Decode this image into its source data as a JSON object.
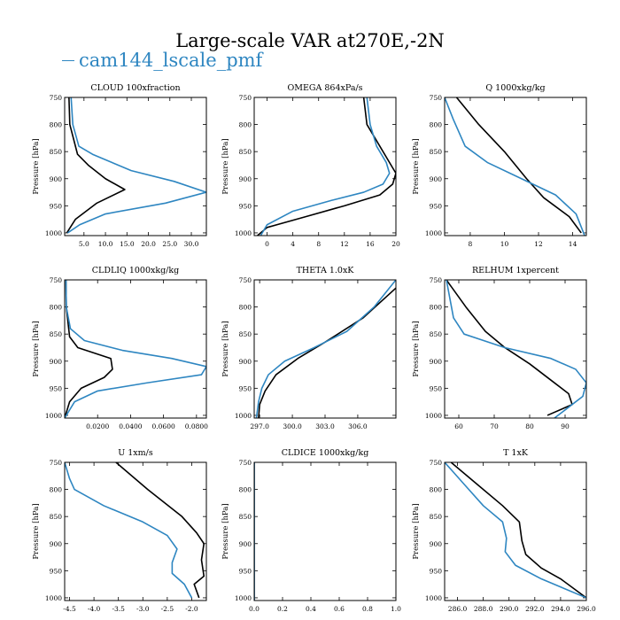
{
  "title": "Large-scale VAR at270E,-2N",
  "legend": {
    "label": "cam144_lscale_pmf",
    "color": "#2e86c1"
  },
  "colors": {
    "case": "#2e86c1",
    "reference": "#000000"
  },
  "chart_data": [
    {
      "type": "line",
      "title": "CLOUD 100xfraction",
      "ylabel": "Pressure [hPa]",
      "xlim": [
        0.5,
        33.5
      ],
      "ylim": [
        1005,
        750
      ],
      "grid": false,
      "xticks": [
        5.0,
        10.0,
        15.0,
        20.0,
        25.0,
        30.0
      ],
      "xtick_labels": [
        "5.0",
        "10.0",
        "15.0",
        "20.0",
        "25.0",
        "30.0"
      ],
      "yticks": [
        750,
        800,
        850,
        900,
        950,
        1000
      ],
      "ytick_labels": [
        "750",
        "800",
        "850",
        "900",
        "950",
        "1000"
      ],
      "series": [
        {
          "name": "cam144_lscale_pmf",
          "color": "#2e86c1",
          "points": [
            [
              2.0,
              750
            ],
            [
              2.4,
              800
            ],
            [
              3.8,
              840
            ],
            [
              7,
              855
            ],
            [
              16,
              885
            ],
            [
              26,
              905
            ],
            [
              33.5,
              925
            ],
            [
              24,
              945
            ],
            [
              10,
              965
            ],
            [
              4,
              985
            ],
            [
              1.2,
              1000
            ]
          ]
        },
        {
          "color": "#000000",
          "points": [
            [
              1.5,
              750
            ],
            [
              1.7,
              800
            ],
            [
              3.5,
              855
            ],
            [
              6,
              875
            ],
            [
              10,
              900
            ],
            [
              14.5,
              920
            ],
            [
              8,
              945
            ],
            [
              3,
              975
            ],
            [
              1,
              1000
            ]
          ]
        }
      ]
    },
    {
      "type": "line",
      "title": "OMEGA 864xPa/s",
      "ylabel": "Pressure [hPa]",
      "xlim": [
        -2,
        20
      ],
      "ylim": [
        1005,
        750
      ],
      "grid": false,
      "xticks": [
        0,
        4,
        8,
        12,
        16,
        20
      ],
      "xtick_labels": [
        "0",
        "4",
        "8",
        "12",
        "16",
        "20"
      ],
      "yticks": [
        750,
        800,
        850,
        900,
        950,
        1000
      ],
      "ytick_labels": [
        "750",
        "800",
        "850",
        "900",
        "950",
        "1000"
      ],
      "series": [
        {
          "name": "cam144_lscale_pmf",
          "color": "#2e86c1",
          "points": [
            [
              15.5,
              750
            ],
            [
              16,
              800
            ],
            [
              17,
              840
            ],
            [
              18.5,
              870
            ],
            [
              19,
              890
            ],
            [
              18,
              910
            ],
            [
              15,
              925
            ],
            [
              10,
              940
            ],
            [
              4,
              960
            ],
            [
              0,
              985
            ],
            [
              -1,
              1005
            ]
          ]
        },
        {
          "color": "#000000",
          "points": [
            [
              15,
              750
            ],
            [
              15.5,
              800
            ],
            [
              17.5,
              840
            ],
            [
              20,
              890
            ],
            [
              19.5,
              910
            ],
            [
              17.5,
              930
            ],
            [
              12,
              950
            ],
            [
              6,
              970
            ],
            [
              0,
              990
            ],
            [
              -1.5,
              1005
            ]
          ]
        }
      ]
    },
    {
      "type": "line",
      "title": "Q 1000xkg/kg",
      "ylabel": "Pressure [hPa]",
      "xlim": [
        6.5,
        14.8
      ],
      "ylim": [
        1005,
        750
      ],
      "grid": false,
      "xticks": [
        8,
        10,
        12,
        14
      ],
      "xtick_labels": [
        "8",
        "10",
        "12",
        "14"
      ],
      "yticks": [
        750,
        800,
        850,
        900,
        950,
        1000
      ],
      "ytick_labels": [
        "750",
        "800",
        "850",
        "900",
        "950",
        "1000"
      ],
      "series": [
        {
          "name": "cam144_lscale_pmf",
          "color": "#2e86c1",
          "points": [
            [
              6.5,
              750
            ],
            [
              7,
              790
            ],
            [
              7.7,
              840
            ],
            [
              9,
              870
            ],
            [
              11,
              900
            ],
            [
              13,
              930
            ],
            [
              14.2,
              965
            ],
            [
              14.7,
              1005
            ]
          ]
        },
        {
          "color": "#000000",
          "points": [
            [
              7.2,
              750
            ],
            [
              8.5,
              800
            ],
            [
              10,
              850
            ],
            [
              11.3,
              900
            ],
            [
              12.3,
              935
            ],
            [
              13.8,
              970
            ],
            [
              14.5,
              1000
            ]
          ]
        }
      ]
    },
    {
      "type": "line",
      "title": "CLDLIQ 1000xkg/kg",
      "ylabel": "Pressure [hPa]",
      "xlim": [
        0,
        0.086
      ],
      "ylim": [
        1005,
        750
      ],
      "grid": false,
      "xticks": [
        0.02,
        0.04,
        0.06,
        0.08
      ],
      "xtick_labels": [
        "0.0200",
        "0.0400",
        "0.0600",
        "0.0800"
      ],
      "yticks": [
        750,
        800,
        850,
        900,
        950,
        1000
      ],
      "ytick_labels": [
        "750",
        "800",
        "850",
        "900",
        "950",
        "1000"
      ],
      "series": [
        {
          "name": "cam144_lscale_pmf",
          "color": "#2e86c1",
          "points": [
            [
              0.0008,
              750
            ],
            [
              0.001,
              800
            ],
            [
              0.0035,
              840
            ],
            [
              0.012,
              862
            ],
            [
              0.035,
              880
            ],
            [
              0.065,
              895
            ],
            [
              0.086,
              910
            ],
            [
              0.083,
              925
            ],
            [
              0.05,
              940
            ],
            [
              0.02,
              955
            ],
            [
              0.006,
              975
            ],
            [
              0,
              1005
            ]
          ]
        },
        {
          "color": "#000000",
          "points": [
            [
              0.0008,
              750
            ],
            [
              0.001,
              800
            ],
            [
              0.003,
              855
            ],
            [
              0.008,
              875
            ],
            [
              0.028,
              895
            ],
            [
              0.029,
              915
            ],
            [
              0.024,
              930
            ],
            [
              0.01,
              950
            ],
            [
              0.003,
              975
            ],
            [
              0,
              1005
            ]
          ]
        }
      ]
    },
    {
      "type": "line",
      "title": "THETA 1.0xK",
      "ylabel": "Pressure [hPa]",
      "xlim": [
        296.5,
        309.5
      ],
      "ylim": [
        1005,
        750
      ],
      "grid": false,
      "xticks": [
        297.0,
        300.0,
        303.0,
        306.0
      ],
      "xtick_labels": [
        "297.0",
        "300.0",
        "303.0",
        "306.0"
      ],
      "yticks": [
        750,
        800,
        850,
        900,
        950,
        1000
      ],
      "ytick_labels": [
        "750",
        "800",
        "850",
        "900",
        "950",
        "1000"
      ],
      "series": [
        {
          "name": "cam144_lscale_pmf",
          "color": "#2e86c1",
          "points": [
            [
              309.5,
              750
            ],
            [
              307.5,
              800
            ],
            [
              305,
              845
            ],
            [
              302,
              875
            ],
            [
              299.3,
              900
            ],
            [
              297.8,
              925
            ],
            [
              297.2,
              950
            ],
            [
              296.9,
              975
            ],
            [
              296.7,
              1005
            ]
          ]
        },
        {
          "color": "#000000",
          "points": [
            [
              309.5,
              765
            ],
            [
              306.5,
              820
            ],
            [
              303,
              865
            ],
            [
              300.5,
              895
            ],
            [
              298.5,
              925
            ],
            [
              297.5,
              955
            ],
            [
              297,
              980
            ],
            [
              296.9,
              1005
            ]
          ]
        }
      ]
    },
    {
      "type": "line",
      "title": "RELHUM 1xpercent",
      "ylabel": "Pressure [hPa]",
      "xlim": [
        56,
        96
      ],
      "ylim": [
        1005,
        750
      ],
      "grid": false,
      "xticks": [
        60,
        70,
        80,
        90
      ],
      "xtick_labels": [
        "60",
        "70",
        "80",
        "90"
      ],
      "yticks": [
        750,
        800,
        850,
        900,
        950,
        1000
      ],
      "ytick_labels": [
        "750",
        "800",
        "850",
        "900",
        "950",
        "1000"
      ],
      "series": [
        {
          "name": "cam144_lscale_pmf",
          "color": "#2e86c1",
          "points": [
            [
              56.5,
              750
            ],
            [
              58.5,
              820
            ],
            [
              61.5,
              850
            ],
            [
              73,
              875
            ],
            [
              86,
              895
            ],
            [
              93,
              915
            ],
            [
              96,
              940
            ],
            [
              95,
              965
            ],
            [
              90,
              990
            ],
            [
              87,
              1005
            ]
          ]
        },
        {
          "color": "#000000",
          "points": [
            [
              56.5,
              750
            ],
            [
              62,
              800
            ],
            [
              67.5,
              845
            ],
            [
              73,
              875
            ],
            [
              80,
              905
            ],
            [
              86,
              935
            ],
            [
              91,
              960
            ],
            [
              92,
              980
            ],
            [
              85,
              1000
            ]
          ]
        }
      ]
    },
    {
      "type": "line",
      "title": "U 1xm/s",
      "ylabel": "Pressure [hPa]",
      "xlim": [
        -4.6,
        -1.7
      ],
      "ylim": [
        1005,
        750
      ],
      "grid": false,
      "xticks": [
        -4.5,
        -4.0,
        -3.5,
        -3.0,
        -2.5,
        -2.0
      ],
      "xtick_labels": [
        "-4.5",
        "-4.0",
        "-3.5",
        "-3.0",
        "-2.5",
        "-2.0"
      ],
      "yticks": [
        750,
        800,
        850,
        900,
        950,
        1000
      ],
      "ytick_labels": [
        "750",
        "800",
        "850",
        "900",
        "950",
        "1000"
      ],
      "series": [
        {
          "name": "cam144_lscale_pmf",
          "color": "#2e86c1",
          "points": [
            [
              -4.6,
              750
            ],
            [
              -4.5,
              780
            ],
            [
              -4.4,
              800
            ],
            [
              -3.8,
              830
            ],
            [
              -3,
              860
            ],
            [
              -2.5,
              885
            ],
            [
              -2.3,
              910
            ],
            [
              -2.4,
              935
            ],
            [
              -2.4,
              955
            ],
            [
              -2.15,
              975
            ],
            [
              -2,
              1000
            ]
          ]
        },
        {
          "color": "#000000",
          "points": [
            [
              -3.55,
              750
            ],
            [
              -2.9,
              800
            ],
            [
              -2.2,
              850
            ],
            [
              -1.9,
              880
            ],
            [
              -1.75,
              900
            ],
            [
              -1.8,
              930
            ],
            [
              -1.75,
              960
            ],
            [
              -1.95,
              975
            ],
            [
              -1.85,
              1000
            ]
          ]
        }
      ]
    },
    {
      "type": "line",
      "title": "CLDICE 1000xkg/kg",
      "ylabel": "Pressure [hPa]",
      "xlim": [
        0,
        1.0
      ],
      "ylim": [
        1005,
        750
      ],
      "grid": false,
      "xticks": [
        0.0,
        0.2,
        0.4,
        0.6,
        0.8,
        1.0
      ],
      "xtick_labels": [
        "0.0",
        "0.2",
        "0.4",
        "0.6",
        "0.8",
        "1.0"
      ],
      "yticks": [
        750,
        800,
        850,
        900,
        950,
        1000
      ],
      "ytick_labels": [
        "750",
        "800",
        "850",
        "900",
        "950",
        "1000"
      ],
      "series": [
        {
          "name": "cam144_lscale_pmf",
          "color": "#2e86c1",
          "points": [
            [
              0,
              750
            ],
            [
              0,
              1005
            ]
          ]
        },
        {
          "color": "#000000",
          "points": [
            [
              0,
              750
            ],
            [
              0,
              1005
            ]
          ]
        }
      ]
    },
    {
      "type": "line",
      "title": "T 1xK",
      "ylabel": "Pressure [hPa]",
      "xlim": [
        285,
        296
      ],
      "ylim": [
        1005,
        750
      ],
      "grid": false,
      "xticks": [
        286.0,
        288.0,
        290.0,
        292.0,
        294.0,
        296.0
      ],
      "xtick_labels": [
        "286.0",
        "288.0",
        "290.0",
        "292.0",
        "294.0",
        "296.0"
      ],
      "yticks": [
        750,
        800,
        850,
        900,
        950,
        1000
      ],
      "ytick_labels": [
        "750",
        "800",
        "850",
        "900",
        "950",
        "1000"
      ],
      "series": [
        {
          "name": "cam144_lscale_pmf",
          "color": "#2e86c1",
          "points": [
            [
              285,
              750
            ],
            [
              286.5,
              790
            ],
            [
              288,
              830
            ],
            [
              289.5,
              860
            ],
            [
              289.8,
              890
            ],
            [
              289.7,
              915
            ],
            [
              290.5,
              940
            ],
            [
              292.5,
              965
            ],
            [
              296,
              1000
            ]
          ]
        },
        {
          "color": "#000000",
          "points": [
            [
              285.5,
              750
            ],
            [
              287.5,
              790
            ],
            [
              289.5,
              830
            ],
            [
              290.8,
              860
            ],
            [
              291,
              895
            ],
            [
              291.3,
              920
            ],
            [
              292.5,
              945
            ],
            [
              294,
              965
            ],
            [
              296,
              1000
            ]
          ]
        }
      ]
    }
  ]
}
